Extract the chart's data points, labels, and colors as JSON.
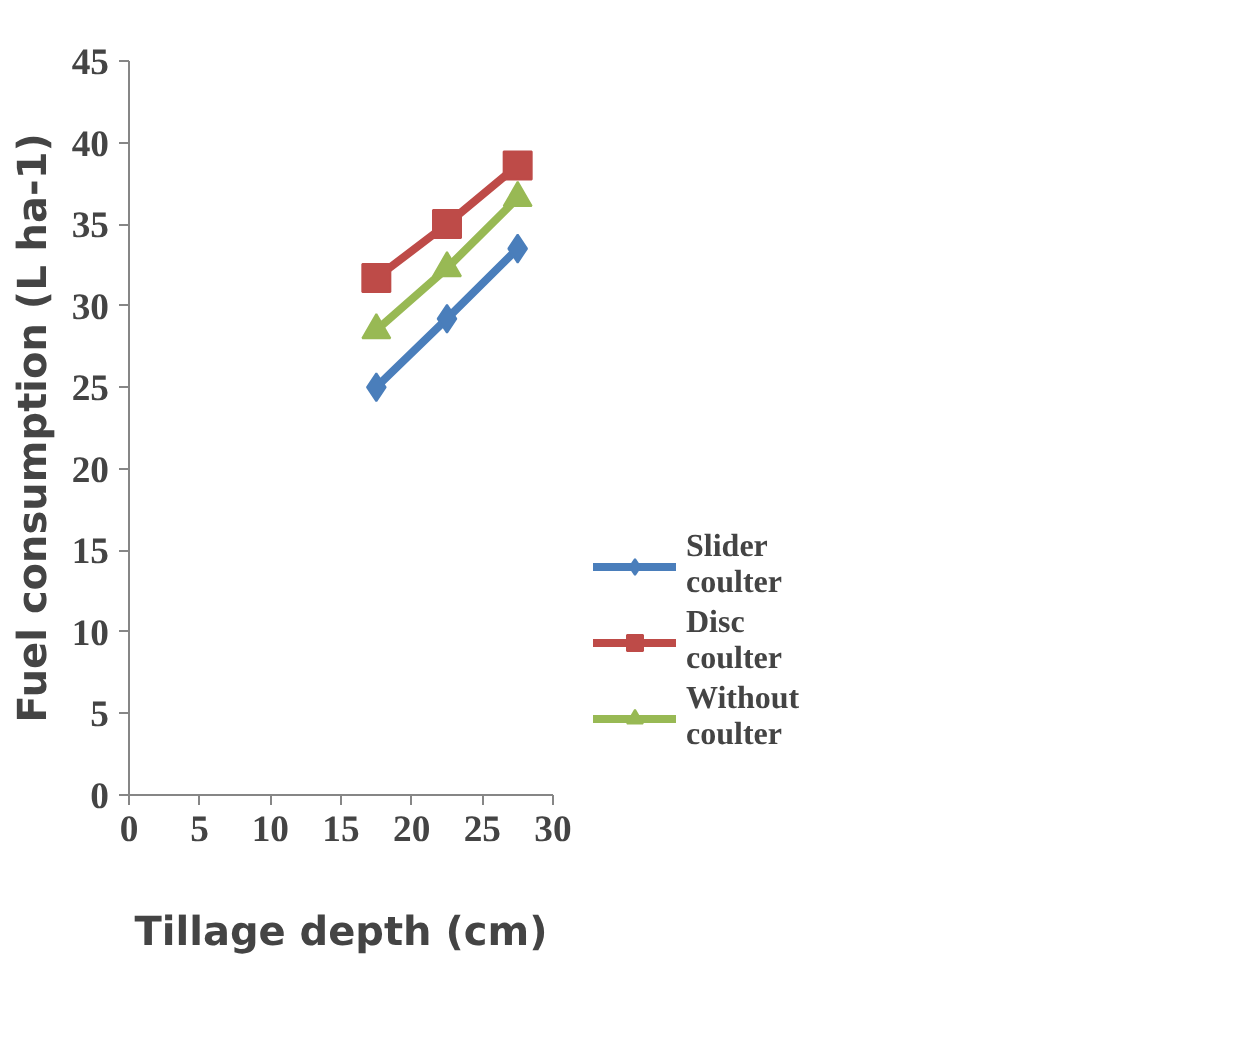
{
  "chart_data": {
    "type": "line",
    "xlabel": "Tillage depth (cm)",
    "ylabel": "Fuel consumption (L ha-1)",
    "x": [
      17.5,
      22.5,
      27.5
    ],
    "xlim": [
      0,
      30
    ],
    "xticks": [
      0,
      5,
      10,
      15,
      20,
      25,
      30
    ],
    "ylim": [
      0,
      45
    ],
    "yticks": [
      0,
      5,
      10,
      15,
      20,
      25,
      30,
      35,
      40,
      45
    ],
    "grid": false,
    "legend": "right",
    "series": [
      {
        "name": "Slider coulter",
        "color": "#4a7ebb",
        "marker": "diamond",
        "values": [
          25.0,
          29.2,
          33.5
        ]
      },
      {
        "name": "Disc coulter",
        "color": "#be4b48",
        "marker": "square",
        "values": [
          31.7,
          35.0,
          38.6
        ]
      },
      {
        "name": "Without coulter",
        "color": "#98b954",
        "marker": "triangle",
        "values": [
          28.5,
          32.3,
          36.6
        ]
      }
    ]
  }
}
